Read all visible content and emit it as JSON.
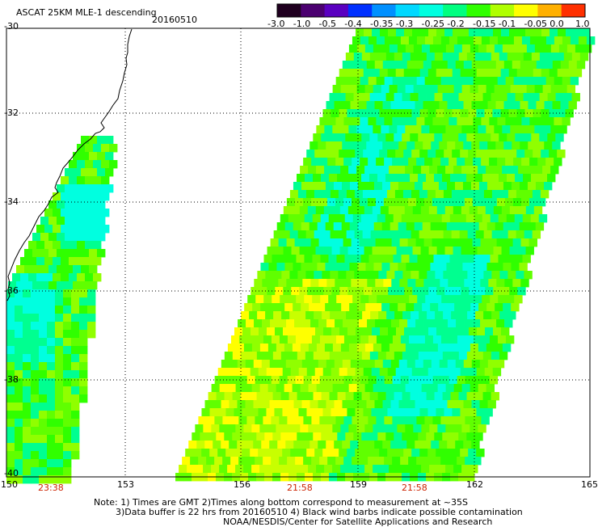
{
  "title": "ASCAT 25KM MLE-1 descending",
  "date": "20160510",
  "colorbar": {
    "ticks": [
      "-3.0",
      "-1.0",
      "-0.5",
      "-0.4",
      "-0.35",
      "-0.3",
      "-0.25",
      "-0.2",
      "-0.15",
      "-0.1",
      "-0.05",
      "0.0",
      "1.0"
    ],
    "colors": [
      "#200020",
      "#4b0070",
      "#5a00c0",
      "#0030ff",
      "#0090ff",
      "#00d8ff",
      "#00ffe0",
      "#00ff80",
      "#30ff00",
      "#b0ff00",
      "#ffff00",
      "#ffb000",
      "#ff3000"
    ]
  },
  "lat_labels": [
    "-30",
    "-32",
    "-34",
    "-36",
    "-38",
    "-40"
  ],
  "lon_labels": [
    "150",
    "153",
    "156",
    "159",
    "162",
    "165"
  ],
  "pass_times": [
    "23:38",
    "21:58",
    "21:58"
  ],
  "notes": {
    "line1": "Note: 1) Times are GMT 2)Times along bottom correspond to measurement at ~35S",
    "line2": "3)Data buffer is 22 hrs from 20160510 4) Black wind barbs indicate possible contamination",
    "line3": "NOAA/NESDIS/Center for Satellite Applications and Research"
  }
}
